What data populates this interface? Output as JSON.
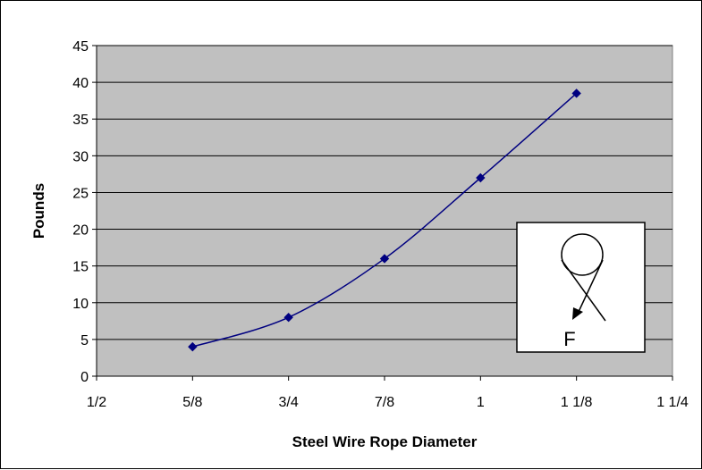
{
  "chart_data": {
    "type": "line",
    "title": "",
    "xlabel": "Steel Wire Rope Diameter",
    "ylabel": "Pounds",
    "x_ticks": [
      "1/2",
      "5/8",
      "3/4",
      "7/8",
      "1",
      "1 1/8",
      "1 1/4"
    ],
    "xlim": [
      0.5,
      1.25
    ],
    "ylim": [
      0,
      45
    ],
    "y_ticks": [
      0,
      5,
      10,
      15,
      20,
      25,
      30,
      35,
      40,
      45
    ],
    "grid": "horizontal",
    "legend": "none",
    "series": [
      {
        "x": [
          0.625,
          0.75,
          0.875,
          1.0,
          1.125
        ],
        "y": [
          4,
          8,
          16,
          27,
          38.5
        ],
        "color": "#000080",
        "marker": "diamond"
      }
    ],
    "inset": {
      "label": "F",
      "icon": "rope-over-sheave-force-icon"
    },
    "colors": {
      "plot_background": "#c0c0c0",
      "gridline": "#000000",
      "series": "#000080"
    }
  }
}
